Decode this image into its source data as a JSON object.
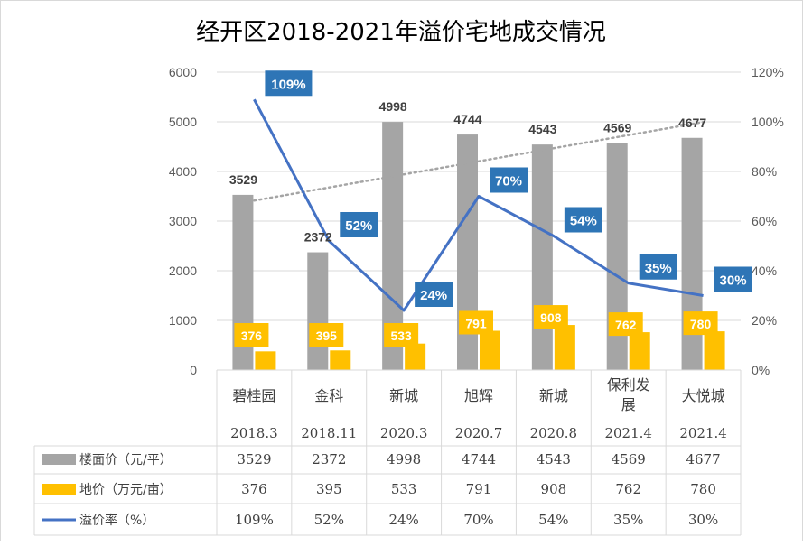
{
  "chart_data": {
    "type": "bar",
    "title": "经开区2018-2021年溢价宅地成交情况",
    "categories": [
      "碧桂园",
      "金科",
      "新城",
      "旭辉",
      "新城",
      "保利发展",
      "大悦城"
    ],
    "dates": [
      "2018.3",
      "2018.11",
      "2020.3",
      "2020.7",
      "2020.8",
      "2021.4",
      "2021.4"
    ],
    "y_left": {
      "ylim": [
        0,
        6000
      ],
      "ticks": [
        0,
        1000,
        2000,
        3000,
        4000,
        5000,
        6000
      ]
    },
    "y_right": {
      "ylim": [
        0,
        120
      ],
      "ticks": [
        "0%",
        "20%",
        "40%",
        "60%",
        "80%",
        "100%",
        "120%"
      ]
    },
    "series": [
      {
        "name": "楼面价（元/平）",
        "type": "bar",
        "axis": "left",
        "color": "#a5a5a5",
        "values": [
          3529,
          2372,
          4998,
          4744,
          4543,
          4569,
          4677
        ],
        "labels": [
          "3529",
          "2372",
          "4998",
          "4744",
          "4543",
          "4569",
          "4677"
        ]
      },
      {
        "name": "地价（万元/亩）",
        "type": "bar",
        "axis": "left",
        "color": "#ffc000",
        "values": [
          376,
          395,
          533,
          791,
          908,
          762,
          780
        ],
        "labels": [
          "376",
          "395",
          "533",
          "791",
          "908",
          "762",
          "780"
        ]
      },
      {
        "name": "溢价率（%）",
        "type": "line",
        "axis": "right",
        "color": "#4472c4",
        "label_color": "#2e75b6",
        "values": [
          109,
          52,
          24,
          70,
          54,
          35,
          30
        ],
        "labels": [
          "109%",
          "52%",
          "24%",
          "70%",
          "54%",
          "35%",
          "30%"
        ]
      }
    ],
    "trendline": {
      "series": "楼面价（元/平）",
      "type": "linear",
      "style": "dotted",
      "color": "#a5a5a5"
    },
    "table_rows": [
      {
        "label": "楼面价（元/平）",
        "values": [
          "3529",
          "2372",
          "4998",
          "4744",
          "4543",
          "4569",
          "4677"
        ]
      },
      {
        "label": "地价（万元/亩）",
        "values": [
          "376",
          "395",
          "533",
          "791",
          "908",
          "762",
          "780"
        ]
      },
      {
        "label": "溢价率（%）",
        "values": [
          "109%",
          "52%",
          "24%",
          "70%",
          "54%",
          "35%",
          "30%"
        ]
      }
    ]
  }
}
